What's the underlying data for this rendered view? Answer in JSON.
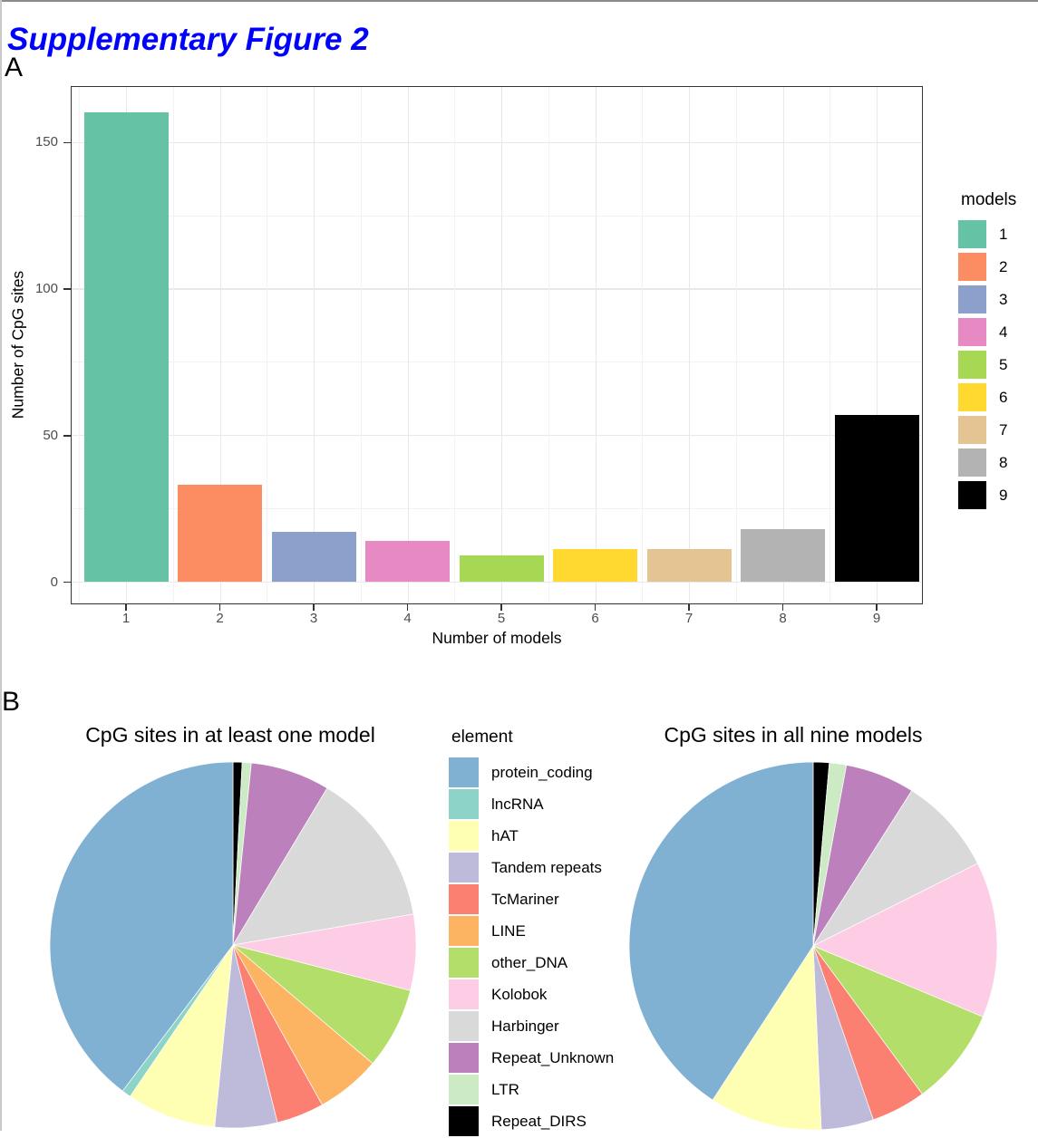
{
  "figure": {
    "title": "Supplementary Figure 2",
    "title_color": "#0000ff",
    "panel_a_label": "A",
    "panel_b_label": "B"
  },
  "chart_data": [
    {
      "type": "bar",
      "panel": "A",
      "title": "",
      "xlabel": "Number of models",
      "ylabel": "Number of CpG sites",
      "categories": [
        "1",
        "2",
        "3",
        "4",
        "5",
        "6",
        "7",
        "8",
        "9"
      ],
      "values": [
        160,
        33,
        17,
        14,
        9,
        11,
        11,
        18,
        57
      ],
      "colors": [
        "#66C2A5",
        "#FC8D62",
        "#8DA0CB",
        "#E78AC3",
        "#A6D854",
        "#FFD92F",
        "#E5C494",
        "#B3B3B3",
        "#000000"
      ],
      "yticks": [
        0,
        50,
        100,
        150
      ],
      "ylim": [
        0,
        168
      ],
      "grid": true,
      "legend": {
        "title": "models",
        "position": "right",
        "labels": [
          "1",
          "2",
          "3",
          "4",
          "5",
          "6",
          "7",
          "8",
          "9"
        ]
      }
    },
    {
      "type": "pie",
      "panel": "B",
      "title": "CpG sites in at least one model",
      "start_angle": "12 o'clock",
      "direction": "clockwise",
      "slices": [
        {
          "label": "Repeat_DIRS",
          "percent": 0.8
        },
        {
          "label": "LTR",
          "percent": 0.8
        },
        {
          "label": "Repeat_Unknown",
          "percent": 7.0
        },
        {
          "label": "Harbinger",
          "percent": 13.7
        },
        {
          "label": "Kolobok",
          "percent": 6.7
        },
        {
          "label": "other_DNA",
          "percent": 7.2
        },
        {
          "label": "LINE",
          "percent": 5.7
        },
        {
          "label": "TcMariner",
          "percent": 4.2
        },
        {
          "label": "Tandem repeats",
          "percent": 5.5
        },
        {
          "label": "hAT",
          "percent": 7.9
        },
        {
          "label": "lncRNA",
          "percent": 0.8
        },
        {
          "label": "protein_coding",
          "percent": 39.7
        }
      ]
    },
    {
      "type": "pie",
      "panel": "B",
      "title": "CpG sites in all nine models",
      "start_angle": "12 o'clock",
      "direction": "clockwise",
      "slices": [
        {
          "label": "Repeat_DIRS",
          "percent": 1.4
        },
        {
          "label": "LTR",
          "percent": 1.5
        },
        {
          "label": "Repeat_Unknown",
          "percent": 6.1
        },
        {
          "label": "Harbinger",
          "percent": 8.6
        },
        {
          "label": "Kolobok",
          "percent": 13.7
        },
        {
          "label": "other_DNA",
          "percent": 8.6
        },
        {
          "label": "TcMariner",
          "percent": 4.8
        },
        {
          "label": "Tandem repeats",
          "percent": 4.6
        },
        {
          "label": "hAT",
          "percent": 9.9
        },
        {
          "label": "protein_coding",
          "percent": 40.8
        }
      ]
    }
  ],
  "element_legend": {
    "title": "element",
    "entries": [
      {
        "label": "protein_coding",
        "color": "#80B1D3"
      },
      {
        "label": "lncRNA",
        "color": "#8DD3C7"
      },
      {
        "label": "hAT",
        "color": "#FFFFB3"
      },
      {
        "label": "Tandem repeats",
        "color": "#BEBADA"
      },
      {
        "label": "TcMariner",
        "color": "#FB8072"
      },
      {
        "label": "LINE",
        "color": "#FDB462"
      },
      {
        "label": "other_DNA",
        "color": "#B3DE69"
      },
      {
        "label": "Kolobok",
        "color": "#FCCDE5"
      },
      {
        "label": "Harbinger",
        "color": "#D9D9D9"
      },
      {
        "label": "Repeat_Unknown",
        "color": "#BC80BD"
      },
      {
        "label": "LTR",
        "color": "#CCEBC5"
      },
      {
        "label": "Repeat_DIRS",
        "color": "#000000"
      }
    ]
  }
}
